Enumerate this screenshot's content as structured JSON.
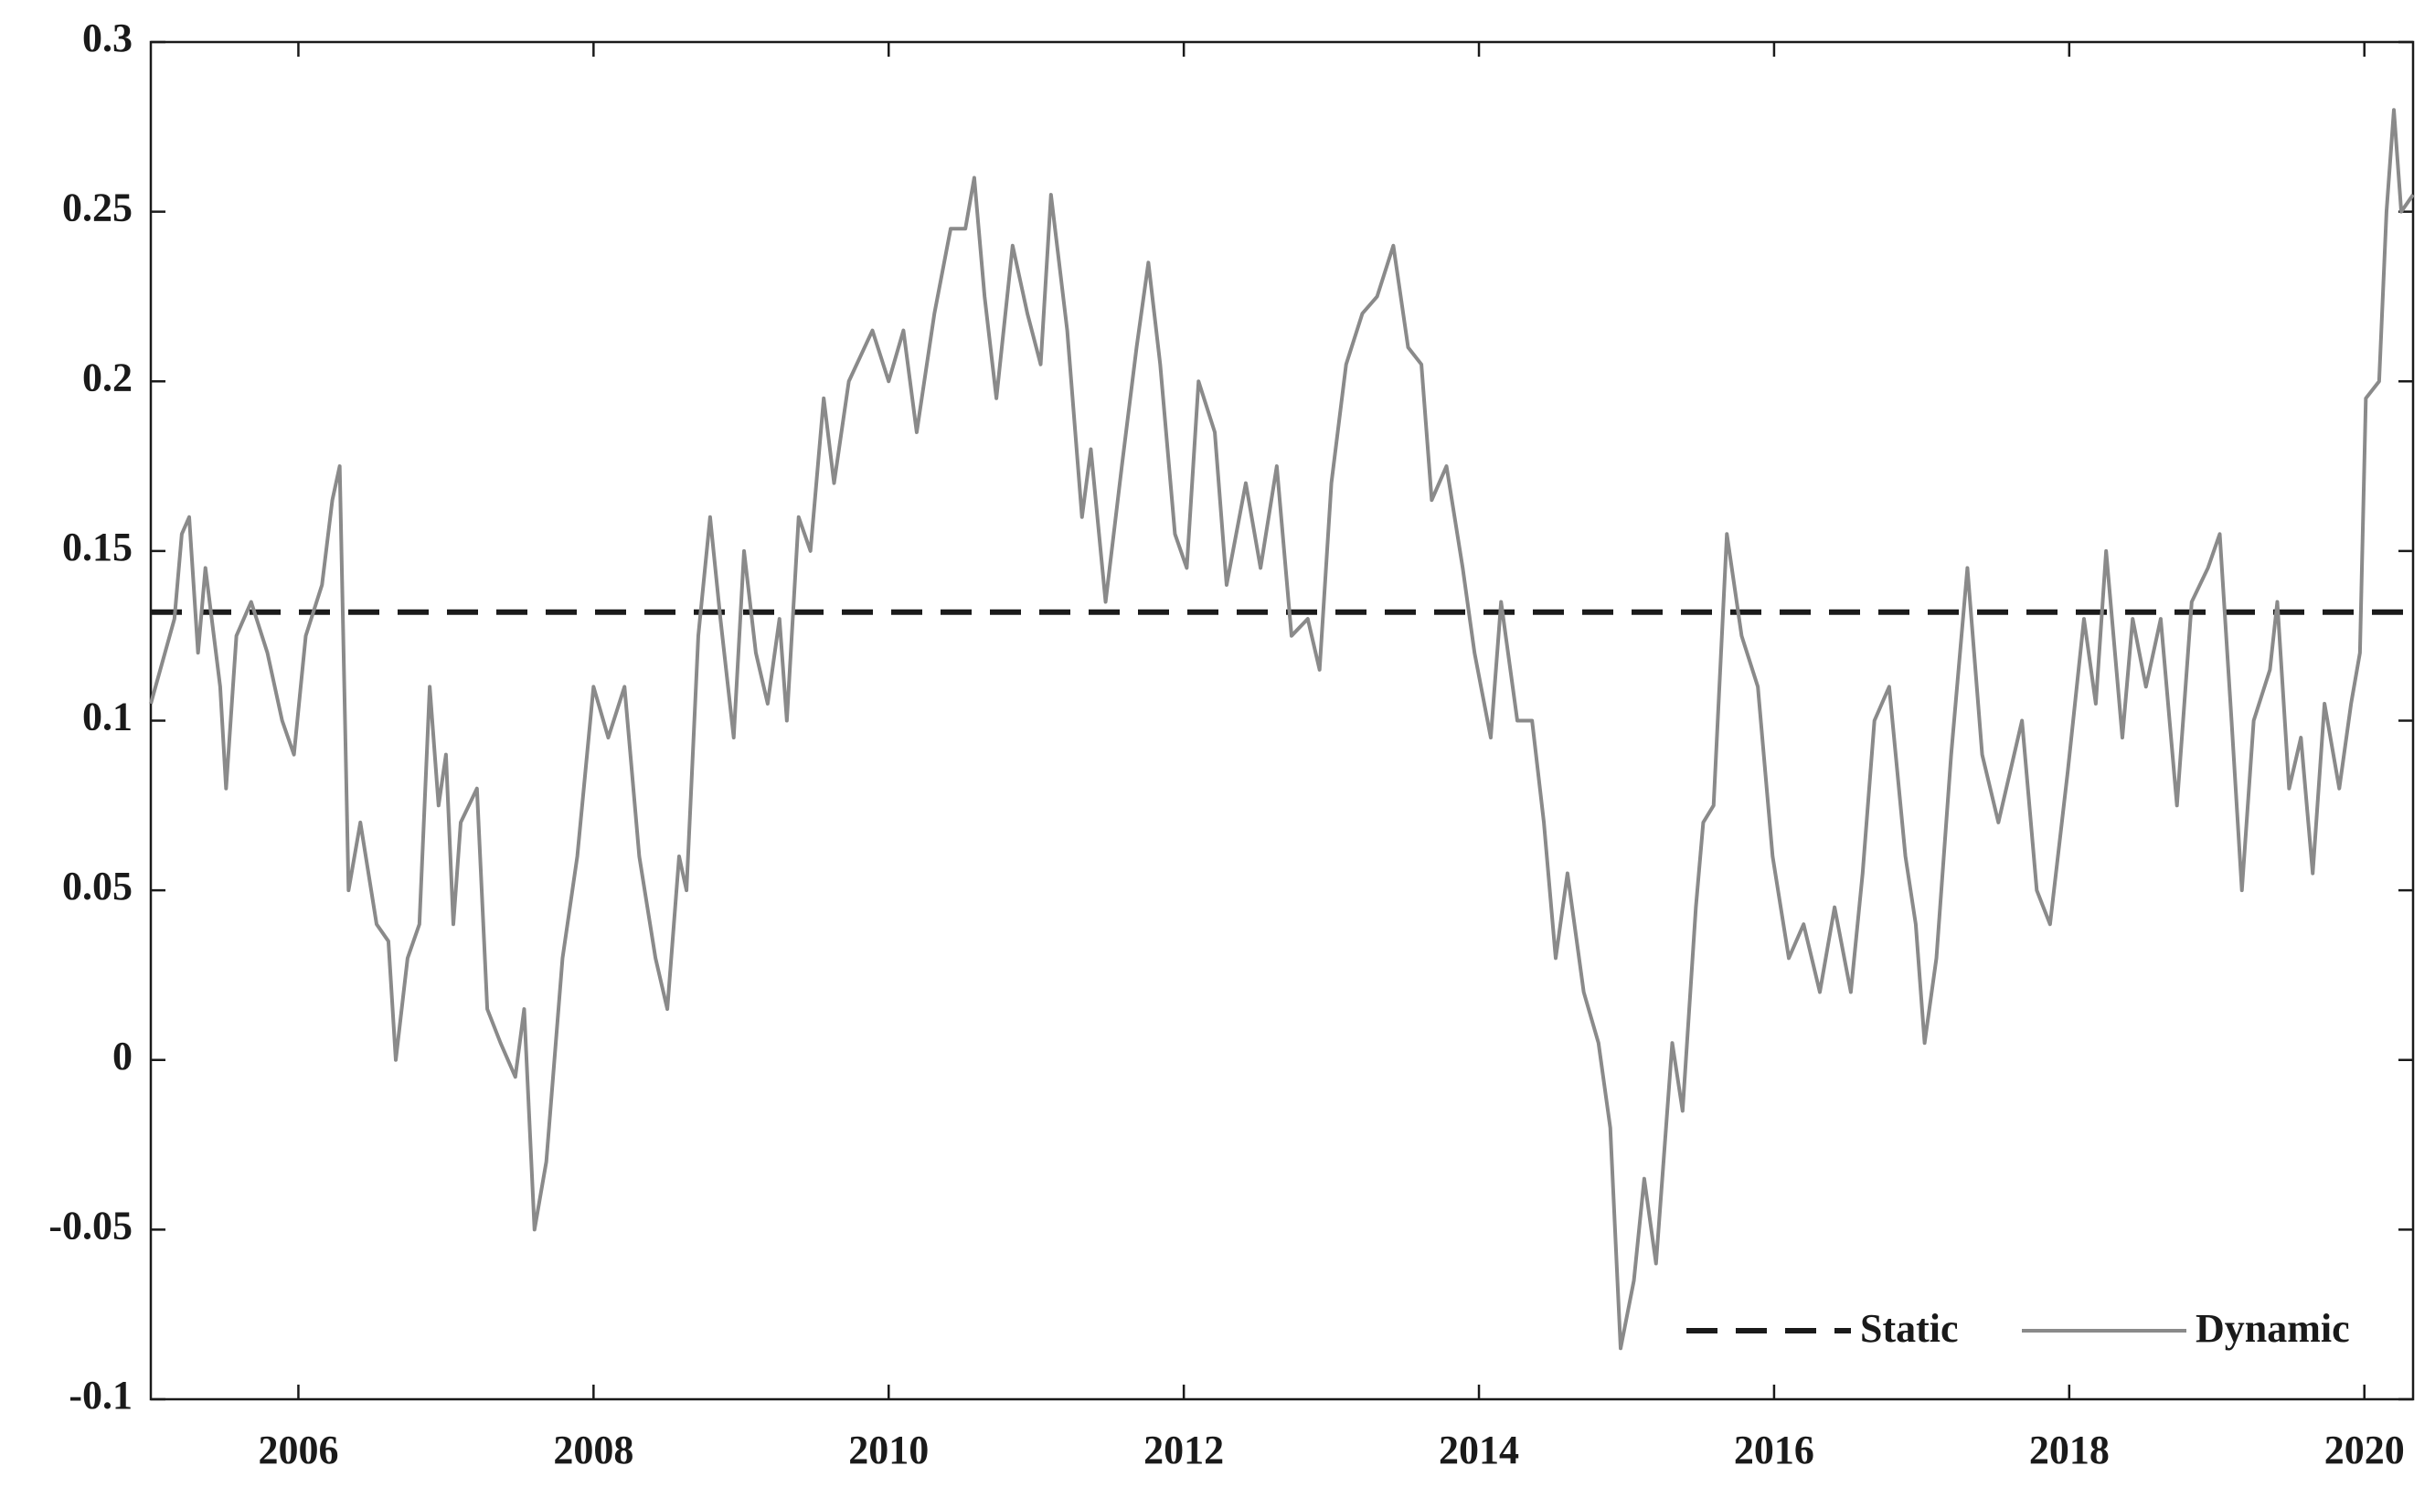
{
  "chart_data": {
    "type": "line",
    "xlim": [
      2005,
      2020.33
    ],
    "xticks": [
      2006,
      2008,
      2010,
      2012,
      2014,
      2016,
      2018,
      2020
    ],
    "ylim": [
      -0.1,
      0.3
    ],
    "yticks": [
      -0.1,
      -0.05,
      0,
      0.05,
      0.1,
      0.15,
      0.2,
      0.25,
      0.3
    ],
    "legend": "lower right",
    "series": [
      {
        "name": "Static",
        "color": "#1a1a1a",
        "dash": true,
        "x": [
          2005,
          2020.33
        ],
        "values": [
          0.132,
          0.132
        ]
      },
      {
        "name": "Dynamic",
        "color": "#8a8a8a",
        "dash": false,
        "x": [
          2005.0,
          2005.16,
          2005.21,
          2005.26,
          2005.32,
          2005.37,
          2005.47,
          2005.51,
          2005.58,
          2005.68,
          2005.79,
          2005.89,
          2005.97,
          2006.05,
          2006.16,
          2006.23,
          2006.28,
          2006.34,
          2006.42,
          2006.53,
          2006.61,
          2006.66,
          2006.74,
          2006.82,
          2006.89,
          2006.95,
          2007.0,
          2007.05,
          2007.1,
          2007.21,
          2007.28,
          2007.37,
          2007.47,
          2007.53,
          2007.6,
          2007.68,
          2007.79,
          2007.89,
          2008.0,
          2008.1,
          2008.21,
          2008.31,
          2008.42,
          2008.5,
          2008.58,
          2008.63,
          2008.71,
          2008.79,
          2008.86,
          2008.95,
          2009.02,
          2009.1,
          2009.18,
          2009.26,
          2009.31,
          2009.39,
          2009.47,
          2009.56,
          2009.63,
          2009.73,
          2009.89,
          2010.0,
          2010.1,
          2010.19,
          2010.31,
          2010.42,
          2010.52,
          2010.58,
          2010.65,
          2010.73,
          2010.84,
          2010.94,
          2011.03,
          2011.1,
          2011.21,
          2011.31,
          2011.37,
          2011.47,
          2011.58,
          2011.68,
          2011.76,
          2011.84,
          2011.94,
          2012.02,
          2012.1,
          2012.21,
          2012.29,
          2012.42,
          2012.52,
          2012.63,
          2012.73,
          2012.84,
          2012.92,
          2013.0,
          2013.1,
          2013.21,
          2013.31,
          2013.42,
          2013.52,
          2013.61,
          2013.68,
          2013.78,
          2013.89,
          2013.97,
          2014.08,
          2014.15,
          2014.26,
          2014.36,
          2014.44,
          2014.52,
          2014.6,
          2014.71,
          2014.81,
          2014.89,
          2014.96,
          2015.05,
          2015.12,
          2015.2,
          2015.31,
          2015.38,
          2015.47,
          2015.52,
          2015.59,
          2015.68,
          2015.78,
          2015.89,
          2015.99,
          2016.1,
          2016.2,
          2016.31,
          2016.41,
          2016.52,
          2016.6,
          2016.68,
          2016.78,
          2016.89,
          2016.96,
          2017.02,
          2017.1,
          2017.2,
          2017.31,
          2017.41,
          2017.52,
          2017.68,
          2017.78,
          2017.87,
          2017.99,
          2018.1,
          2018.18,
          2018.25,
          2018.36,
          2018.43,
          2018.52,
          2018.62,
          2018.73,
          2018.83,
          2018.94,
          2019.02,
          2019.1,
          2019.17,
          2019.25,
          2019.36,
          2019.41,
          2019.49,
          2019.57,
          2019.65,
          2019.73,
          2019.83,
          2019.91,
          2019.97,
          2020.01,
          2020.1,
          2020.15,
          2020.2,
          2020.25,
          2020.33
        ],
        "values": [
          0.105,
          0.13,
          0.155,
          0.16,
          0.12,
          0.145,
          0.11,
          0.08,
          0.125,
          0.135,
          0.12,
          0.1,
          0.09,
          0.125,
          0.14,
          0.165,
          0.175,
          0.05,
          0.07,
          0.04,
          0.035,
          0.0,
          0.03,
          0.04,
          0.11,
          0.075,
          0.09,
          0.04,
          0.07,
          0.08,
          0.015,
          0.005,
          -0.005,
          0.015,
          -0.05,
          -0.03,
          0.03,
          0.06,
          0.11,
          0.095,
          0.11,
          0.06,
          0.03,
          0.015,
          0.06,
          0.05,
          0.125,
          0.16,
          0.13,
          0.095,
          0.15,
          0.12,
          0.105,
          0.13,
          0.1,
          0.16,
          0.15,
          0.195,
          0.17,
          0.2,
          0.215,
          0.2,
          0.215,
          0.185,
          0.22,
          0.245,
          0.245,
          0.26,
          0.225,
          0.195,
          0.24,
          0.22,
          0.205,
          0.255,
          0.215,
          0.16,
          0.18,
          0.135,
          0.175,
          0.21,
          0.235,
          0.205,
          0.155,
          0.145,
          0.2,
          0.185,
          0.14,
          0.17,
          0.145,
          0.175,
          0.125,
          0.13,
          0.115,
          0.17,
          0.205,
          0.22,
          0.225,
          0.24,
          0.21,
          0.205,
          0.165,
          0.175,
          0.145,
          0.12,
          0.095,
          0.135,
          0.1,
          0.1,
          0.07,
          0.03,
          0.055,
          0.02,
          0.005,
          -0.02,
          -0.085,
          -0.065,
          -0.035,
          -0.06,
          0.005,
          -0.015,
          0.045,
          0.07,
          0.075,
          0.155,
          0.125,
          0.11,
          0.06,
          0.03,
          0.04,
          0.02,
          0.045,
          0.02,
          0.055,
          0.1,
          0.11,
          0.06,
          0.04,
          0.005,
          0.03,
          0.09,
          0.145,
          0.09,
          0.07,
          0.1,
          0.05,
          0.04,
          0.085,
          0.13,
          0.105,
          0.15,
          0.095,
          0.13,
          0.11,
          0.13,
          0.075,
          0.135,
          0.145,
          0.155,
          0.1,
          0.05,
          0.1,
          0.115,
          0.135,
          0.08,
          0.095,
          0.055,
          0.105,
          0.08,
          0.105,
          0.12,
          0.195,
          0.2,
          0.25,
          0.28,
          0.25,
          0.255
        ]
      }
    ]
  }
}
